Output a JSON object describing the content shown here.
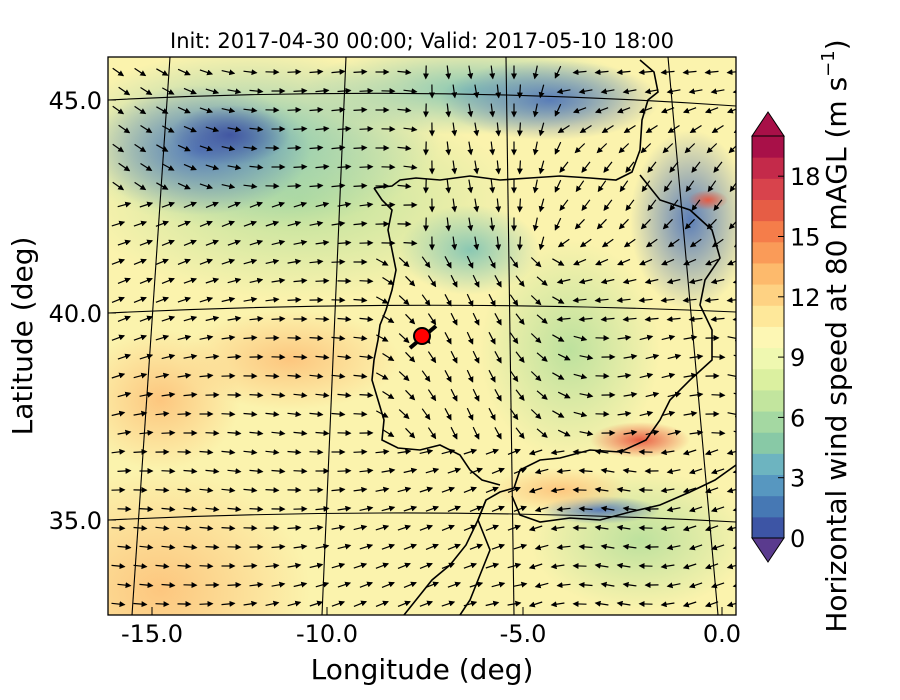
{
  "title": "Init: 2017-04-30 00:00; Valid: 2017-05-10 18:00",
  "map": {
    "lon_range": [
      -16.0,
      0.2
    ],
    "lat_range": [
      32.5,
      46.0
    ],
    "x_ticks": [
      "-15.0",
      "-10.0",
      "-5.0",
      "0.0"
    ],
    "y_ticks": [
      "45.0",
      "40.0",
      "35.0"
    ],
    "xlabel": "Longitude (deg)",
    "ylabel": "Latitude (deg)",
    "site_marker": {
      "lon": -7.7,
      "lat": 39.3,
      "color": "#ff0000"
    }
  },
  "colorbar": {
    "label": "Horizontal wind speed at 80 mAGL (m s",
    "label_sup": "−1",
    "label_end": ")",
    "range": [
      0,
      20
    ],
    "ticks": [
      "0",
      "3",
      "6",
      "9",
      "12",
      "15",
      "18"
    ],
    "extend": "both",
    "colors": [
      "#3d55a5",
      "#4678b4",
      "#5797c0",
      "#6db4c0",
      "#88c9a6",
      "#a4d8a2",
      "#c2e59e",
      "#dbf0a0",
      "#eff8b0",
      "#fdf7b4",
      "#fee89a",
      "#fed283",
      "#fdba6c",
      "#fa9b58",
      "#f57d4a",
      "#e65d45",
      "#d8434c",
      "#c42a4a",
      "#a81048"
    ]
  }
}
